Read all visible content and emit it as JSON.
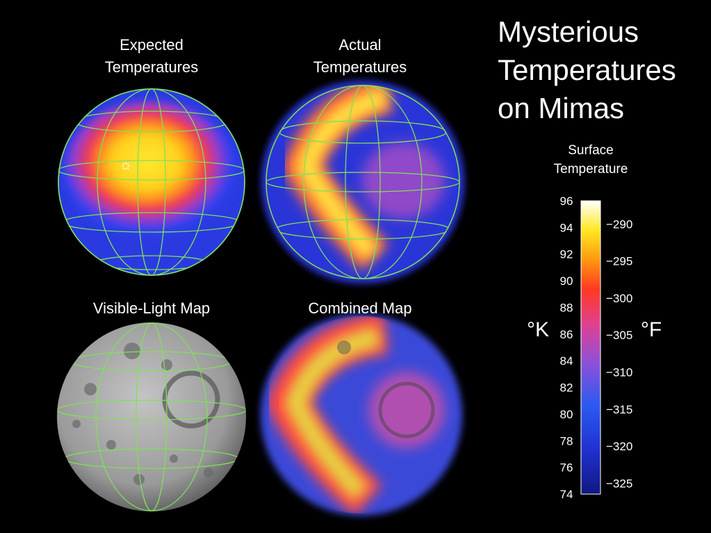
{
  "title": {
    "lines": [
      "Mysterious",
      "Temperatures",
      "on Mimas"
    ]
  },
  "panels": [
    {
      "label": [
        "Expected",
        "Temperatures"
      ]
    },
    {
      "label": [
        "Actual",
        "Temperatures"
      ]
    },
    {
      "label": [
        "Visible-Light Map"
      ]
    },
    {
      "label": [
        "Combined Map"
      ]
    }
  ],
  "colorbar": {
    "title": [
      "Surface",
      "Temperature"
    ],
    "left_unit": "°K",
    "right_unit": "°F",
    "left_lim": [
      74,
      96
    ],
    "left_ticks": [
      74,
      76,
      78,
      80,
      82,
      84,
      86,
      88,
      90,
      92,
      94,
      96
    ],
    "right_lim": [
      -326.47,
      -286.87
    ],
    "right_ticks": [
      {
        "value": -325,
        "label": "−325"
      },
      {
        "value": -320,
        "label": "−320"
      },
      {
        "value": -315,
        "label": "−315"
      },
      {
        "value": -310,
        "label": "−310"
      },
      {
        "value": -305,
        "label": "−305"
      },
      {
        "value": -300,
        "label": "−300"
      },
      {
        "value": -295,
        "label": "−295"
      },
      {
        "value": -290,
        "label": "−290"
      }
    ]
  }
}
